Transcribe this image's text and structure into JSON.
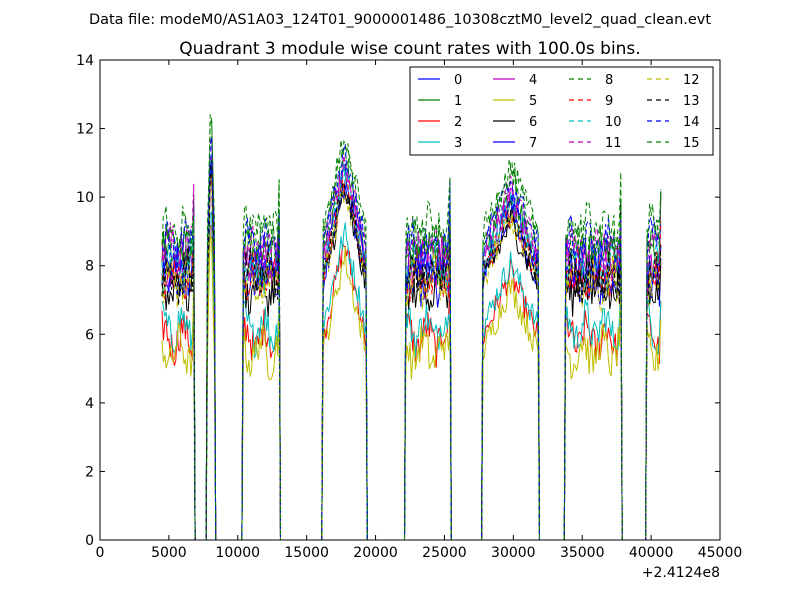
{
  "figure": {
    "suptitle": "Data file: modeM0/AS1A03_124T01_9000001486_10308cztM0_level2_quad_clean.evt"
  },
  "chart_data": {
    "type": "line",
    "title": "Quadrant 3 module wise count rates with 100.0s bins.",
    "xlabel": "",
    "ylabel": "",
    "x_offset_label": "+2.4124e8",
    "xlim": [
      0,
      45000
    ],
    "ylim": [
      0,
      14
    ],
    "xticks": [
      0,
      5000,
      10000,
      15000,
      20000,
      25000,
      30000,
      35000,
      40000,
      45000
    ],
    "yticks": [
      0,
      2,
      4,
      6,
      8,
      10,
      12,
      14
    ],
    "grid": false,
    "legend_position": "top-right",
    "legend_columns": 4,
    "bin_seconds": 100,
    "segments": [
      [
        4500,
        6800
      ],
      [
        7800,
        8300
      ],
      [
        10400,
        13000
      ],
      [
        16200,
        19300
      ],
      [
        22200,
        25400
      ],
      [
        27800,
        31800
      ],
      [
        33800,
        37800
      ],
      [
        39700,
        40700
      ]
    ],
    "segment_peaks": [
      null,
      12.4,
      null,
      11.3,
      null,
      10.4,
      null,
      null
    ],
    "series": [
      {
        "name": "0",
        "color": "#0000ff",
        "dash": "solid",
        "mean": 7.6
      },
      {
        "name": "1",
        "color": "#008000",
        "dash": "solid",
        "mean": 8.3
      },
      {
        "name": "2",
        "color": "#ff0000",
        "dash": "solid",
        "mean": 5.9
      },
      {
        "name": "3",
        "color": "#00bfbf",
        "dash": "solid",
        "mean": 6.2
      },
      {
        "name": "4",
        "color": "#bf00bf",
        "dash": "solid",
        "mean": 8.1
      },
      {
        "name": "5",
        "color": "#bfbf00",
        "dash": "solid",
        "mean": 5.5
      },
      {
        "name": "6",
        "color": "#000000",
        "dash": "solid",
        "mean": 7.4
      },
      {
        "name": "7",
        "color": "#0000ff",
        "dash": "solid",
        "mean": 7.9
      },
      {
        "name": "8",
        "color": "#008000",
        "dash": "dashed",
        "mean": 8.8
      },
      {
        "name": "9",
        "color": "#ff0000",
        "dash": "dashed",
        "mean": 7.7
      },
      {
        "name": "10",
        "color": "#00bfbf",
        "dash": "dashed",
        "mean": 8.0
      },
      {
        "name": "11",
        "color": "#bf00bf",
        "dash": "dashed",
        "mean": 8.4
      },
      {
        "name": "12",
        "color": "#bfbf00",
        "dash": "dashed",
        "mean": 7.5
      },
      {
        "name": "13",
        "color": "#000000",
        "dash": "dashed",
        "mean": 7.7
      },
      {
        "name": "14",
        "color": "#0000ff",
        "dash": "dashed",
        "mean": 8.6
      },
      {
        "name": "15",
        "color": "#008000",
        "dash": "dashed",
        "mean": 9.0
      }
    ]
  }
}
